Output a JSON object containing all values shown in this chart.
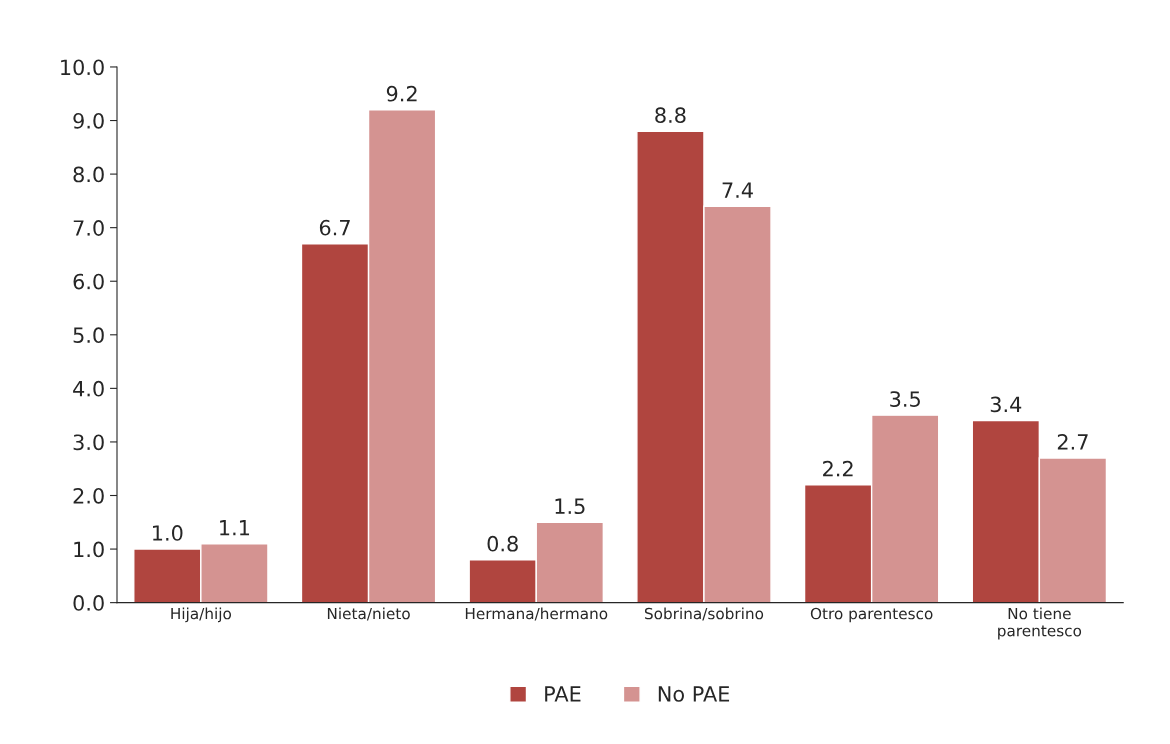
{
  "chart_data": {
    "type": "bar",
    "categories": [
      "Hija/hijo",
      "Nieta/nieto",
      "Hermana/hermano",
      "Sobrina/sobrino",
      "Otro parentesco",
      "No tiene\nparentesco"
    ],
    "series": [
      {
        "name": "PAE",
        "color": "#b0453f",
        "values": [
          1.0,
          6.7,
          0.8,
          8.8,
          2.2,
          3.4
        ],
        "value_labels": [
          "1.0",
          "6.7",
          "0.8",
          "8.8",
          "2.2",
          "3.4"
        ]
      },
      {
        "name": "No PAE",
        "color": "#d49391",
        "values": [
          1.1,
          9.2,
          1.5,
          7.4,
          3.5,
          2.7
        ],
        "value_labels": [
          "1.1",
          "9.2",
          "1.5",
          "7.4",
          "3.5",
          "2.7"
        ]
      }
    ],
    "ylim": [
      0,
      10
    ],
    "yticks": [
      {
        "value": 0,
        "label": "0.0"
      },
      {
        "value": 1,
        "label": "1.0"
      },
      {
        "value": 2,
        "label": "2.0"
      },
      {
        "value": 3,
        "label": "3.0"
      },
      {
        "value": 4,
        "label": "4.0"
      },
      {
        "value": 5,
        "label": "5.0"
      },
      {
        "value": 6,
        "label": "6.0"
      },
      {
        "value": 7,
        "label": "7.0"
      },
      {
        "value": 8,
        "label": "8.0"
      },
      {
        "value": 9,
        "label": "9.0"
      },
      {
        "value": 10,
        "label": "10.0"
      }
    ],
    "grid": false,
    "legend": "bottom"
  }
}
